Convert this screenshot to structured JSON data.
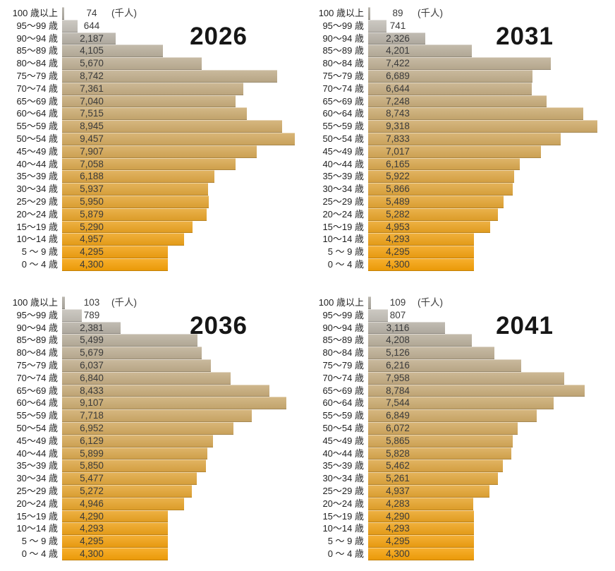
{
  "chart_data": {
    "type": "bar",
    "orientation": "horizontal",
    "description": "Four population pyramids (single-sided horizontal bar charts) by 5-year age group, values in thousands of people",
    "unit_label": "(千人)",
    "categories": [
      "100 歳以上",
      "95〜99 歳",
      "90〜94 歳",
      "85〜89 歳",
      "80〜84 歳",
      "75〜79 歳",
      "70〜74 歳",
      "65〜69 歳",
      "60〜64 歳",
      "55〜59 歳",
      "50〜54 歳",
      "45〜49 歳",
      "40〜44 歳",
      "35〜39 歳",
      "30〜34 歳",
      "25〜29 歳",
      "20〜24 歳",
      "15〜19 歳",
      "10〜14 歳",
      "5 〜 9 歳",
      "0 〜 4 歳"
    ],
    "xlim": [
      0,
      10000
    ],
    "grid": false,
    "charts": [
      {
        "title": "2026",
        "values": [
          74,
          644,
          2187,
          4105,
          5670,
          8742,
          7361,
          7040,
          7515,
          8945,
          9457,
          7907,
          7058,
          6188,
          5937,
          5950,
          5879,
          5290,
          4957,
          4295,
          4300
        ],
        "labels": [
          "74",
          "644",
          "2,187",
          "4,105",
          "5,670",
          "8,742",
          "7,361",
          "7,040",
          "7,515",
          "8,945",
          "9,457",
          "7,907",
          "7,058",
          "6,188",
          "5,937",
          "5,950",
          "5,879",
          "5,290",
          "4,957",
          "4,295",
          "4,300"
        ]
      },
      {
        "title": "2031",
        "values": [
          89,
          741,
          2326,
          4201,
          7422,
          6689,
          6644,
          7248,
          8743,
          9318,
          7833,
          7017,
          6165,
          5922,
          5866,
          5489,
          5282,
          4953,
          4293,
          4295,
          4300
        ],
        "labels": [
          "89",
          "741",
          "2,326",
          "4,201",
          "7,422",
          "6,689",
          "6,644",
          "7,248",
          "8,743",
          "9,318",
          "7,833",
          "7,017",
          "6,165",
          "5,922",
          "5,866",
          "5,489",
          "5,282",
          "4,953",
          "4,293",
          "4,295",
          "4,300"
        ]
      },
      {
        "title": "2036",
        "values": [
          103,
          789,
          2381,
          5499,
          5679,
          6037,
          6840,
          8433,
          9107,
          7718,
          6952,
          6129,
          5899,
          5850,
          5477,
          5272,
          4946,
          4290,
          4293,
          4295,
          4300
        ],
        "labels": [
          "103",
          "789",
          "2,381",
          "5,499",
          "5,679",
          "6,037",
          "6,840",
          "8,433",
          "9,107",
          "7,718",
          "6,952",
          "6,129",
          "5,899",
          "5,850",
          "5,477",
          "5,272",
          "4,946",
          "4,290",
          "4,293",
          "4,295",
          "4,300"
        ]
      },
      {
        "title": "2041",
        "values": [
          109,
          807,
          3116,
          4208,
          5126,
          6216,
          7958,
          8784,
          7544,
          6849,
          6072,
          5865,
          5828,
          5462,
          5261,
          4937,
          4283,
          4290,
          4293,
          4295,
          4300
        ],
        "labels": [
          "109",
          "807",
          "3,116",
          "4,208",
          "5,126",
          "6,216",
          "7,958",
          "8,784",
          "7,544",
          "6,849",
          "6,072",
          "5,865",
          "5,828",
          "5,462",
          "5,261",
          "4,937",
          "4,283",
          "4,290",
          "4,293",
          "4,295",
          "4,300"
        ]
      }
    ]
  },
  "colors": {
    "rows": [
      "#aeaaa1",
      "#c3bfb7",
      "#b6b0a5",
      "#b9af9c",
      "#bdae93",
      "#c0ad8b",
      "#c4ac82",
      "#c7ab79",
      "#cbab70",
      "#cfaa68",
      "#d2a95f",
      "#d6a856",
      "#d9a74d",
      "#dda644",
      "#e0a63c",
      "#e4a533",
      "#e7a42a",
      "#eba321",
      "#eea218",
      "#f2a110",
      "#f6a107"
    ]
  }
}
